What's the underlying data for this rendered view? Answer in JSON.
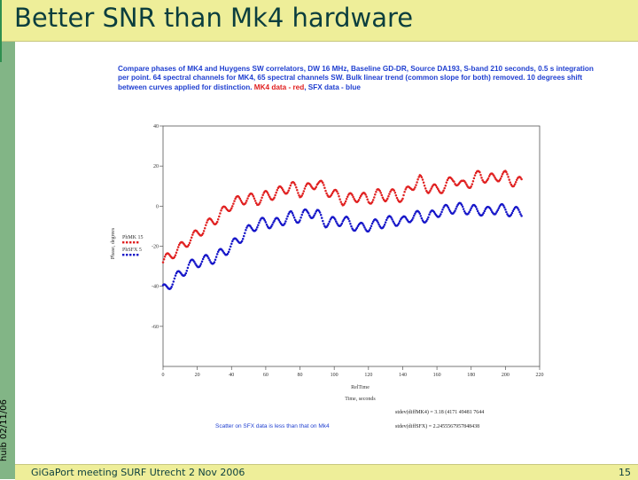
{
  "slide": {
    "title": "Better SNR than Mk4 hardware",
    "footer": "GiGaPort meeting SURF Utrecht 2 Nov 2006",
    "page_number": "15",
    "side_date": "huib 02/11/06",
    "caption_main": "Compare phases of MK4 and Huygens SW correlators, DW 16 MHz, Baseline GD-DR, Source DA193, S-band 210 seconds, 0.5 s integration per point. 64 spectral channels for MK4, 65 spectral channels SW. Bulk linear trend (common slope for both) removed. 10 degrees shift between curves applied for distinction. ",
    "caption_red": "MK4 data - red",
    "caption_end": ", SFX data - blue",
    "note_left": "Scatter on SFX data is less than that on Mk4",
    "stat1": "stdev(diffMK4) = 3.18 (4171 49481 7644",
    "stat2": "stdev(diffSFX) = 2.2455567957848438",
    "colors": {
      "mk4": "#e02020",
      "sfx": "#1515c8",
      "title_bg": "#eeee99",
      "sidebar": "#82b586"
    }
  },
  "chart_data": {
    "type": "scatter",
    "title": "",
    "xlabel_top": "RelTime",
    "xlabel": "Time, seconds",
    "ylabel": "Phase, degrees",
    "xlim": [
      0,
      220
    ],
    "ylim": [
      -80,
      40
    ],
    "xticks": [
      0,
      20,
      40,
      60,
      80,
      100,
      120,
      140,
      160,
      180,
      200,
      220
    ],
    "yticks": [
      40,
      20,
      0,
      -20,
      -40,
      -60
    ],
    "ytick_labels": [
      "40",
      "20",
      "0",
      "-20",
      "-40",
      "-60"
    ],
    "legend": [
      {
        "label": "PhMK 15",
        "color": "#e02020"
      },
      {
        "label": "PhSFX 5",
        "color": "#1515c8"
      }
    ],
    "series": [
      {
        "name": "PhMK 15",
        "color": "#e02020",
        "x": [
          0,
          5,
          10,
          15,
          20,
          25,
          30,
          35,
          40,
          45,
          50,
          55,
          60,
          65,
          70,
          75,
          80,
          85,
          90,
          95,
          100,
          105,
          110,
          115,
          120,
          125,
          130,
          135,
          140,
          145,
          150,
          155,
          160,
          165,
          170,
          175,
          180,
          185,
          190,
          195,
          200,
          205
        ],
        "y": [
          -28,
          -24,
          -21,
          -17,
          -14,
          -10,
          -7,
          -3,
          1,
          3,
          4,
          3,
          5,
          6,
          8,
          10,
          7,
          9,
          12,
          8,
          6,
          3,
          4,
          5,
          3,
          6,
          5,
          6,
          4,
          10,
          13,
          9,
          8,
          10,
          14,
          10,
          12,
          16,
          13,
          15,
          15,
          12
        ]
      },
      {
        "name": "PhSFX 5",
        "color": "#1515c8",
        "x": [
          0,
          5,
          10,
          15,
          20,
          25,
          30,
          35,
          40,
          45,
          50,
          55,
          60,
          65,
          70,
          75,
          80,
          85,
          90,
          95,
          100,
          105,
          110,
          115,
          120,
          125,
          130,
          135,
          140,
          145,
          150,
          155,
          160,
          165,
          170,
          175,
          180,
          185,
          190,
          195,
          200,
          205
        ],
        "y": [
          -42,
          -38,
          -34,
          -30,
          -28,
          -27,
          -26,
          -23,
          -20,
          -16,
          -12,
          -9,
          -8,
          -9,
          -7,
          -5,
          -6,
          -3,
          -4,
          -8,
          -8,
          -7,
          -9,
          -11,
          -10,
          -9,
          -8,
          -7,
          -8,
          -5,
          -5,
          -6,
          -3,
          -2,
          -1,
          -1,
          -2,
          -2,
          -3,
          -1,
          -2,
          -3
        ]
      }
    ]
  }
}
